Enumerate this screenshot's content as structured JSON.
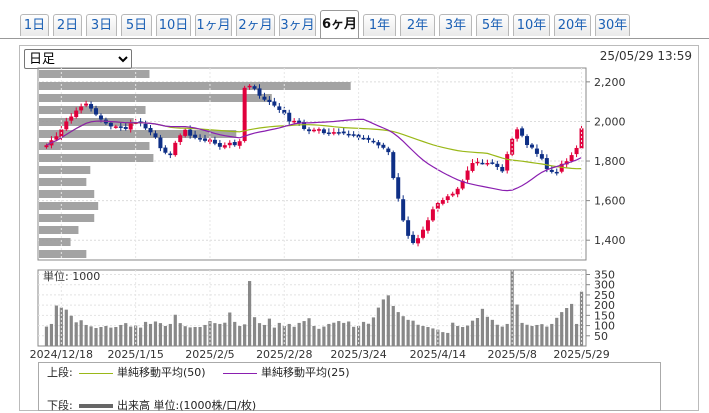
{
  "tabs": [
    {
      "label": "1日"
    },
    {
      "label": "2日"
    },
    {
      "label": "3日"
    },
    {
      "label": "5日"
    },
    {
      "label": "10日"
    },
    {
      "label": "1ヶ月"
    },
    {
      "label": "2ヶ月"
    },
    {
      "label": "3ヶ月"
    },
    {
      "label": "6ヶ月",
      "active": true
    },
    {
      "label": "1年"
    },
    {
      "label": "2年"
    },
    {
      "label": "3年"
    },
    {
      "label": "5年"
    },
    {
      "label": "10年"
    },
    {
      "label": "20年"
    },
    {
      "label": "30年"
    }
  ],
  "period_select": {
    "value": "日足"
  },
  "datetime": "25/05/29 13:59",
  "colors": {
    "up": "#e0003c",
    "down": "#0e2f86",
    "ma50": "#9ab818",
    "ma25": "#8a1fb0",
    "volume_profile": "#999999",
    "volume_bar": "#888888"
  },
  "chart_data": [
    {
      "type": "candlestick",
      "y_ticks": [
        "2,200",
        "2,000",
        "1,800",
        "1,600",
        "1,400"
      ],
      "ylim": [
        1300,
        2270
      ],
      "x_ticks": [
        "2024/12/18",
        "2025/1/15",
        "2025/2/5",
        "2025/2/28",
        "2025/3/24",
        "2025/4/14",
        "2025/5/8",
        "2025/5/29"
      ],
      "close": [
        1880,
        1905,
        1925,
        1960,
        2000,
        2025,
        2055,
        2075,
        2090,
        2065,
        2035,
        2010,
        1990,
        1975,
        1975,
        1968,
        1962,
        1990,
        1995,
        1990,
        1965,
        1945,
        1920,
        1865,
        1842,
        1830,
        1892,
        1930,
        1958,
        1928,
        1918,
        1912,
        1902,
        1908,
        1888,
        1872,
        1880,
        1892,
        1880,
        1900,
        2170,
        2180,
        2165,
        2130,
        2110,
        2098,
        2080,
        2058,
        2040,
        2000,
        2003,
        1992,
        1962,
        1951,
        1958,
        1961,
        1941,
        1942,
        1946,
        1945,
        1940,
        1934,
        1928,
        1919,
        1915,
        1907,
        1896,
        1879,
        1867,
        1845,
        1714,
        1610,
        1500,
        1422,
        1386,
        1410,
        1453,
        1501,
        1556,
        1588,
        1603,
        1622,
        1635,
        1660,
        1700,
        1752,
        1790,
        1796,
        1790,
        1790,
        1790,
        1770,
        1748,
        1835,
        1912,
        1960,
        1928,
        1881,
        1868,
        1836,
        1812,
        1759,
        1745,
        1742,
        1786,
        1799,
        1830,
        1866,
        1965
      ],
      "series": [
        {
          "name": "単純移動平均(50)"
        },
        {
          "name": "単純移動平均(25)"
        }
      ],
      "volume_profile": [
        0.28,
        0.79,
        0.59,
        0.27,
        0.24,
        0.5,
        0.28,
        0.29,
        0.13,
        0.12,
        0.14,
        0.15,
        0.14,
        0.1,
        0.08,
        0.12
      ]
    },
    {
      "type": "bar",
      "title": "単位: 1000",
      "y_ticks": [
        "350",
        "300",
        "250",
        "200",
        "150",
        "100",
        "50"
      ],
      "ylim": [
        0,
        372
      ],
      "values": [
        95,
        108,
        198,
        188,
        178,
        148,
        116,
        126,
        103,
        96,
        88,
        93,
        98,
        90,
        93,
        103,
        112,
        95,
        100,
        90,
        118,
        108,
        120,
        112,
        98,
        108,
        153,
        112,
        97,
        91,
        93,
        93,
        103,
        122,
        112,
        108,
        114,
        164,
        118,
        98,
        106,
        318,
        141,
        112,
        103,
        134,
        90,
        113,
        98,
        108,
        94,
        113,
        122,
        136,
        98,
        84,
        95,
        108,
        114,
        122,
        113,
        120,
        94,
        98,
        118,
        109,
        140,
        188,
        228,
        248,
        196,
        166,
        146,
        128,
        124,
        104,
        98,
        93,
        86,
        80,
        68,
        64,
        114,
        98,
        93,
        100,
        124,
        137,
        182,
        143,
        128,
        104,
        95,
        108,
        372,
        203,
        113,
        104,
        98,
        103,
        107,
        95,
        108,
        138,
        166,
        186,
        206,
        108,
        266
      ]
    }
  ],
  "legend": {
    "upper_label": "上段:",
    "lower_label": "下段:",
    "ma50_label": "単純移動平均(50)",
    "ma25_label": "単純移動平均(25)",
    "volume_label": "出来高 単位:(1000株/口/枚)"
  }
}
